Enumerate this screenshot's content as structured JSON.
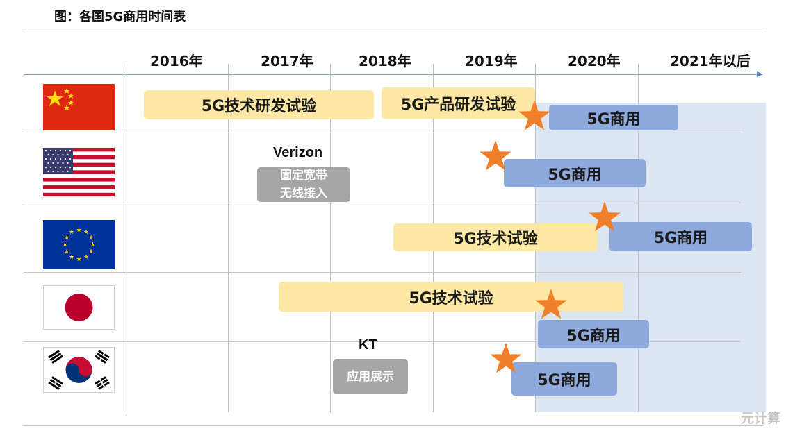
{
  "title": "图：各国5G商用时间表",
  "years": [
    "2016年",
    "2017年",
    "2018年",
    "2019年",
    "2020年",
    "2021年以后"
  ],
  "countries": {
    "china": {
      "bars": [
        "5G技术研发试验",
        "5G产品研发试验",
        "5G商用"
      ]
    },
    "usa": {
      "operator": "Verizon",
      "trial_line1": "固定宽带",
      "trial_line2": "无线接入",
      "bars": [
        "5G商用"
      ]
    },
    "eu": {
      "bars": [
        "5G技术试验",
        "5G商用"
      ]
    },
    "japan": {
      "bars": [
        "5G技术试验",
        "5G商用"
      ]
    },
    "korea": {
      "operator": "KT",
      "trial": "应用展示",
      "bars": [
        "5G商用"
      ]
    }
  },
  "colors": {
    "trial_bar": "#fde9a5",
    "commercial_bar": "#8eaadc",
    "star": "#f07f2a",
    "shade": "#dce6f2",
    "demo_box": "#a6a6a6"
  },
  "watermark": "元计算"
}
